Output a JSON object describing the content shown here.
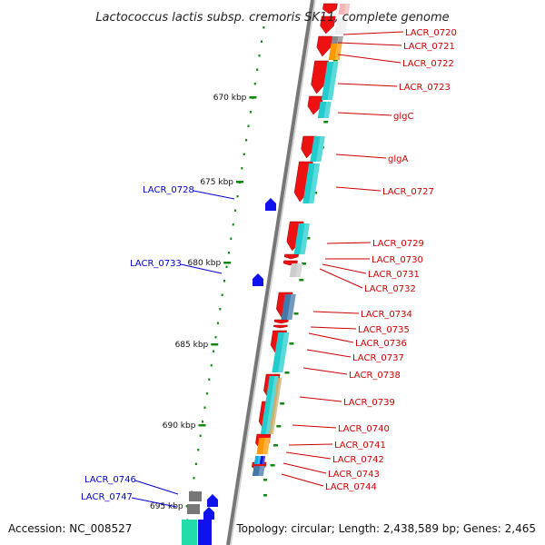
{
  "title": "Lactococcus lactis subsp. cremoris SK11, complete genome",
  "footer": {
    "accession": "Accession: NC_008527",
    "topology": "Topology: circular; Length: 2,438,589 bp; Genes: 2,465"
  },
  "scale_labels": [
    "670 kbp",
    "675 kbp",
    "680 kbp",
    "685 kbp",
    "690 kbp",
    "695 kbp"
  ],
  "right_labels": [
    "LACR_0720",
    "LACR_0721",
    "LACR_0722",
    "LACR_0723",
    "glgC",
    "glgA",
    "LACR_0727",
    "LACR_0729",
    "LACR_0730",
    "LACR_0731",
    "LACR_0732",
    "LACR_0734",
    "LACR_0735",
    "LACR_0736",
    "LACR_0737",
    "LACR_0738",
    "LACR_0739",
    "LACR_0740",
    "LACR_0741",
    "LACR_0742",
    "LACR_0743",
    "LACR_0744"
  ],
  "left_labels": [
    "LACR_0728",
    "LACR_0733",
    "LACR_0746",
    "LACR_0747"
  ],
  "colors": {
    "gene_red": "#ee1111",
    "cyan": "#22cccc",
    "orange": "#ff9900",
    "steel": "#4477aa",
    "tan": "#c8b070",
    "gray": "#888888",
    "blue_gene": "#1111ee",
    "label_red": "#cc0000",
    "label_blue": "#0000cc",
    "tick_green": "#118811"
  }
}
